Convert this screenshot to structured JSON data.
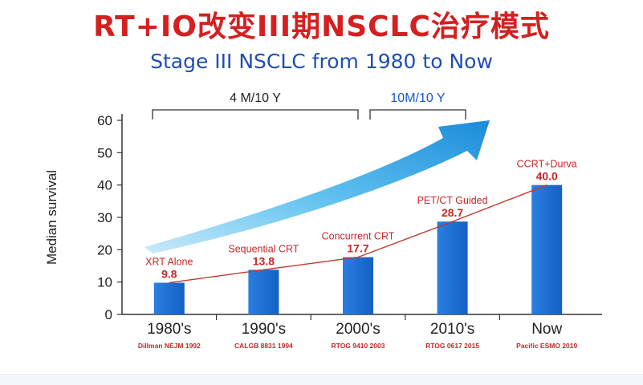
{
  "title": "RT+IO改变III期NSCLC治疗模式",
  "subtitle": "Stage III NSCLC from 1980 to Now",
  "chart_data": {
    "type": "bar",
    "ylabel": "Median survival",
    "xlabel": "",
    "ylim": [
      0,
      60
    ],
    "yticks": [
      0,
      10,
      20,
      30,
      40,
      50,
      60
    ],
    "categories": [
      "1980's",
      "1990's",
      "2000's",
      "2010's",
      "Now"
    ],
    "values": [
      9.8,
      13.8,
      17.7,
      28.7,
      40.0
    ],
    "value_labels": [
      "9.8",
      "13.8",
      "17.7",
      "28.7",
      "40.0"
    ],
    "bar_names": [
      "XRT Alone",
      "Sequential CRT",
      "Concurrent CRT",
      "PET/CT Guided",
      "CCRT+Durva"
    ],
    "references": [
      "Dillman NEJM 1992",
      "CALGB 8831 1994",
      "RTOG 9410 2003",
      "RTOG 0617 2015",
      "Pacific ESMO 2019"
    ],
    "trend_line": true,
    "grid": false,
    "brackets": [
      {
        "label": "4 M/10 Y",
        "from": 0,
        "to": 2
      },
      {
        "label": "10M/10 Y",
        "from": 2,
        "to": 3
      }
    ]
  },
  "colors": {
    "title": "#d42020",
    "subtitle": "#1f4fb0",
    "bar": "#1c6fd1",
    "bar_dark": "#0d4fa8",
    "label_red": "#c62828",
    "trend_line": "#c0392b",
    "bracket_black": "#222222",
    "bracket_blue": "#1a58c8",
    "arrow_light": "#a9dcf5",
    "arrow_mid": "#41b1ec",
    "arrow_dark": "#0f86d8",
    "axis": "#333333"
  }
}
